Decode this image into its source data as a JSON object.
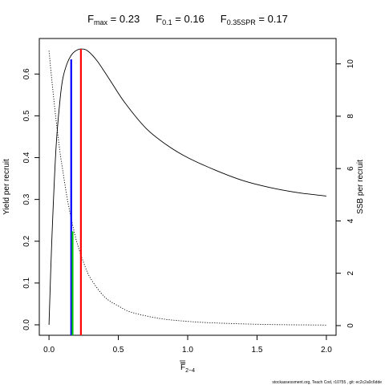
{
  "chart_data": {
    "type": "line",
    "title_parts": [
      {
        "main": "F",
        "sub": "max",
        "value": " = 0.23"
      },
      {
        "main": "F",
        "sub": "0.1",
        "value": " = 0.16"
      },
      {
        "main": "F",
        "sub": "0.35SPR",
        "value": " = 0.17"
      }
    ],
    "xlabel": {
      "main": "F",
      "sub": "2−4",
      "overline": true
    },
    "ylabel_left": "Yield per recruit",
    "ylabel_right": "SSB per recruit",
    "xlim": [
      -0.07,
      2.07
    ],
    "ylim_left": [
      -0.025,
      0.685
    ],
    "ylim_right": [
      -0.37,
      10.97
    ],
    "x_ticks": [
      0,
      0.5,
      1,
      1.5,
      2
    ],
    "x_tick_labels": [
      "0.0",
      "0.5",
      "1.0",
      "1.5",
      "2.0"
    ],
    "y_left_ticks": [
      0,
      0.1,
      0.2,
      0.3,
      0.4,
      0.5,
      0.6
    ],
    "y_left_tick_labels": [
      "0.0",
      "0.1",
      "0.2",
      "0.3",
      "0.4",
      "0.5",
      "0.6"
    ],
    "y_right_ticks": [
      0,
      2,
      4,
      6,
      8,
      10
    ],
    "y_right_tick_labels": [
      "0",
      "2",
      "4",
      "6",
      "8",
      "10"
    ],
    "series": [
      {
        "axis": "left",
        "style": "solid",
        "color": "#000000",
        "x": [
          0,
          0.02,
          0.05,
          0.08,
          0.1,
          0.13,
          0.16,
          0.19,
          0.23,
          0.28,
          0.35,
          0.45,
          0.55,
          0.7,
          0.85,
          1.0,
          1.2,
          1.4,
          1.6,
          1.8,
          2.0
        ],
        "y": [
          0.0,
          0.2,
          0.42,
          0.54,
          0.59,
          0.625,
          0.645,
          0.655,
          0.66,
          0.655,
          0.63,
          0.58,
          0.53,
          0.47,
          0.43,
          0.4,
          0.37,
          0.345,
          0.328,
          0.316,
          0.308
        ]
      },
      {
        "axis": "right",
        "style": "dotted",
        "color": "#000000",
        "x": [
          0,
          0.02,
          0.05,
          0.08,
          0.1,
          0.13,
          0.16,
          0.2,
          0.25,
          0.3,
          0.4,
          0.5,
          0.6,
          0.8,
          1.0,
          1.2,
          1.5,
          1.75,
          2.0
        ],
        "y": [
          10.5,
          9.4,
          7.9,
          6.6,
          5.9,
          4.9,
          4.1,
          3.2,
          2.4,
          1.8,
          1.1,
          0.75,
          0.5,
          0.27,
          0.16,
          0.1,
          0.05,
          0.03,
          0.02
        ]
      }
    ],
    "reference_lines": [
      {
        "label": "F0.1",
        "x": 0.16,
        "axis": "left",
        "y_top": 0.635,
        "color": "#0000ff"
      },
      {
        "label": "F0.35SPR",
        "x": 0.17,
        "axis": "right",
        "y_top": 3.6,
        "color": "#00cc00"
      },
      {
        "label": "Fmax",
        "x": 0.23,
        "axis": "left",
        "y_top": 0.66,
        "color": "#ff0000"
      }
    ],
    "footer": "stockassessment.org, Teach Cod, r10755 , git: ec2c2a0c6dde"
  }
}
